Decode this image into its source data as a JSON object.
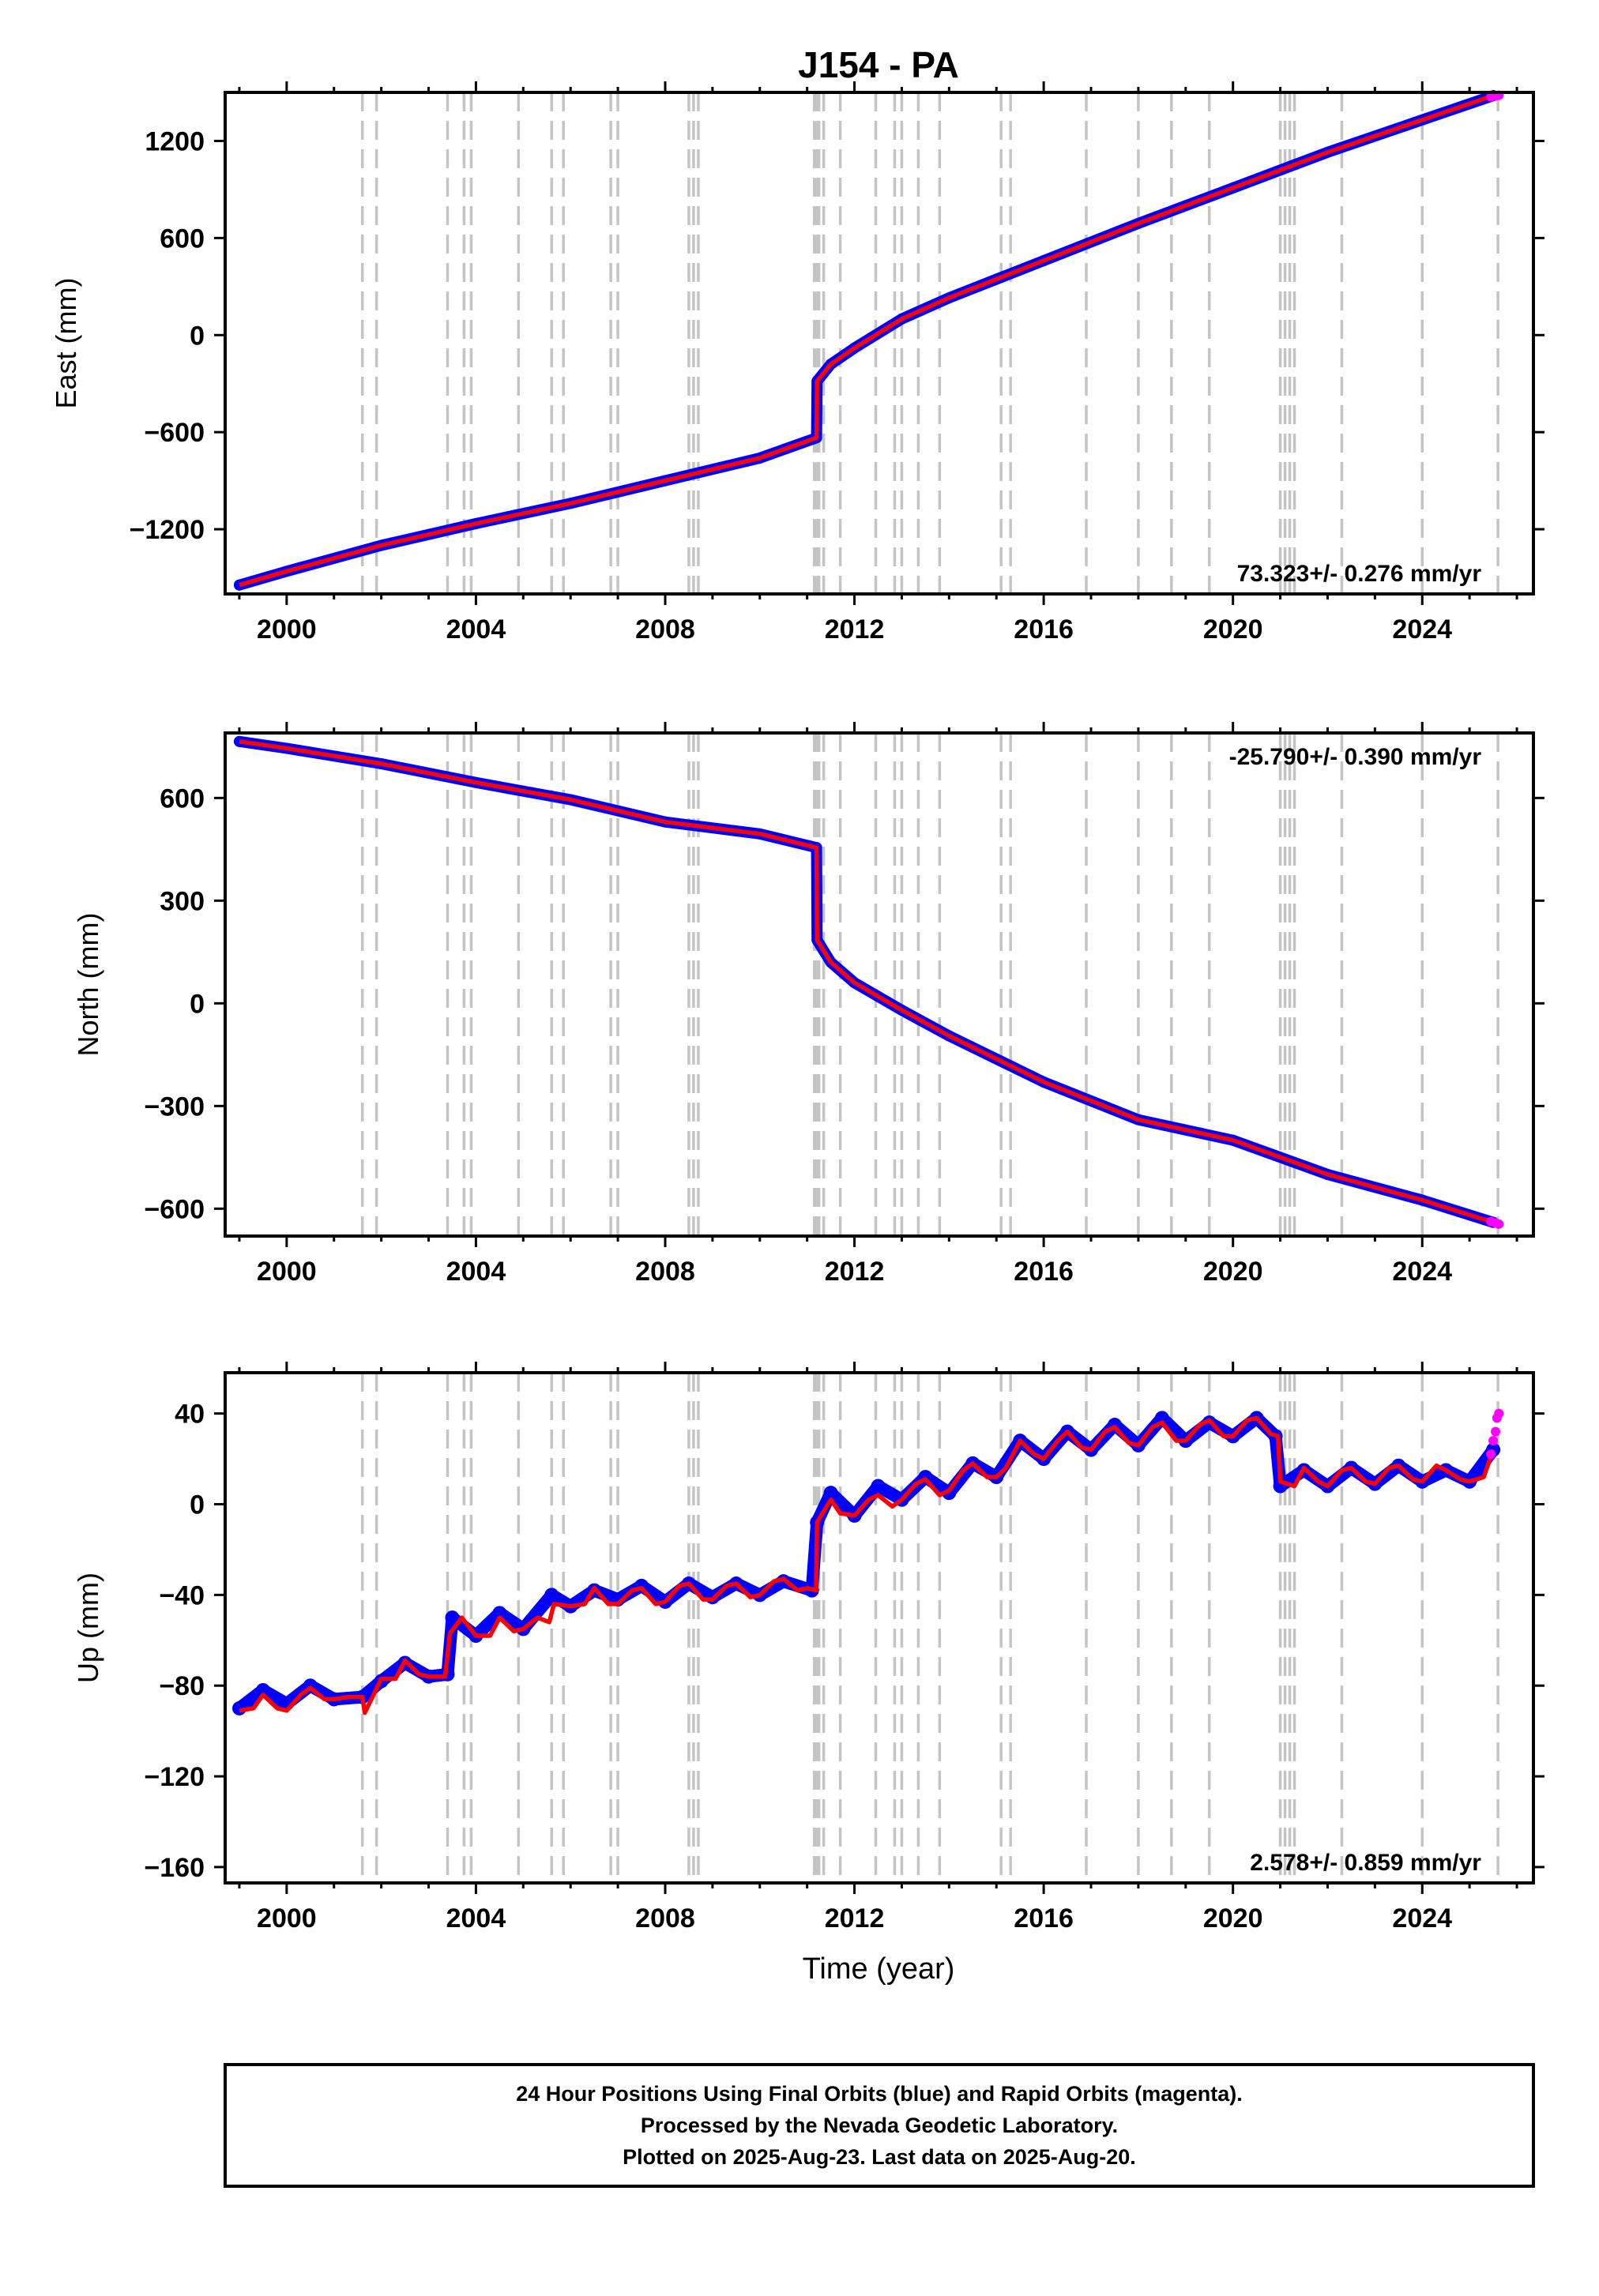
{
  "chart_data": [
    {
      "type": "scatter",
      "title": "J154 - PA",
      "xlabel": "",
      "ylabel": "East (mm)",
      "xlim": [
        1998.7,
        2026.35
      ],
      "ylim": [
        -1600,
        1500
      ],
      "xticks": [
        2000,
        2004,
        2008,
        2012,
        2016,
        2020,
        2024
      ],
      "xtick_labels": [
        "2000",
        "2004",
        "2008",
        "2012",
        "2016",
        "2020",
        "2024"
      ],
      "yticks": [
        1200,
        600,
        0,
        -600,
        -1200
      ],
      "ytick_labels": [
        "1200",
        "600",
        "0",
        "−600",
        "−1200"
      ],
      "rate_label": "73.323+/- 0.276 mm/yr",
      "rate_position": "bottom-right",
      "step_lines": [
        2001.6,
        2001.9,
        2003.4,
        2003.75,
        2003.9,
        2004.9,
        2005.6,
        2005.85,
        2006.85,
        2007.0,
        2008.5,
        2008.6,
        2008.7,
        2011.15,
        2011.2,
        2011.25,
        2011.35,
        2011.7,
        2012.45,
        2012.85,
        2013.0,
        2013.35,
        2013.8,
        2015.1,
        2015.3,
        2016.9,
        2018.0,
        2018.7,
        2019.5,
        2021.0,
        2021.1,
        2021.2,
        2021.3,
        2022.3,
        2024.0,
        2025.6
      ],
      "series": [
        {
          "color": "#0000ff",
          "x": [
            1999.0,
            2000.0,
            2002.0,
            2004.0,
            2006.0,
            2008.0,
            2010.0,
            2011.2,
            2011.21,
            2011.5,
            2012.0,
            2013.0,
            2014.0,
            2016.0,
            2018.0,
            2020.0,
            2022.0,
            2024.0,
            2025.5
          ],
          "y": [
            -1545,
            -1460,
            -1300,
            -1165,
            -1040,
            -900,
            -760,
            -635,
            -285,
            -180,
            -80,
            100,
            230,
            460,
            690,
            910,
            1130,
            1330,
            1480
          ]
        },
        {
          "color": "#ff0000",
          "x": [
            1999.0,
            2000.0,
            2002.0,
            2004.0,
            2006.0,
            2008.0,
            2010.0,
            2011.2,
            2011.21,
            2011.5,
            2012.0,
            2013.0,
            2014.0,
            2016.0,
            2018.0,
            2020.0,
            2022.0,
            2024.0,
            2025.5
          ],
          "y": [
            -1545,
            -1460,
            -1300,
            -1165,
            -1040,
            -900,
            -760,
            -635,
            -285,
            -180,
            -80,
            100,
            230,
            460,
            690,
            910,
            1130,
            1330,
            1480
          ]
        },
        {
          "color": "#ff00ff",
          "x": [
            2025.45,
            2025.55,
            2025.62
          ],
          "y": [
            1472,
            1478,
            1482
          ]
        }
      ]
    },
    {
      "type": "scatter",
      "xlabel": "",
      "ylabel": "North (mm)",
      "xlim": [
        1998.7,
        2026.35
      ],
      "ylim": [
        -680,
        790
      ],
      "xticks": [
        2000,
        2004,
        2008,
        2012,
        2016,
        2020,
        2024
      ],
      "xtick_labels": [
        "2000",
        "2004",
        "2008",
        "2012",
        "2016",
        "2020",
        "2024"
      ],
      "yticks": [
        600,
        300,
        0,
        -300,
        -600
      ],
      "ytick_labels": [
        "600",
        "300",
        "0",
        "−300",
        "−600"
      ],
      "rate_label": "-25.790+/- 0.390 mm/yr",
      "rate_position": "top-right",
      "step_lines": [
        2001.6,
        2001.9,
        2003.4,
        2003.75,
        2003.9,
        2004.9,
        2005.6,
        2005.85,
        2006.85,
        2007.0,
        2008.5,
        2008.6,
        2008.7,
        2011.15,
        2011.2,
        2011.25,
        2011.35,
        2011.7,
        2012.45,
        2012.85,
        2013.0,
        2013.35,
        2013.8,
        2015.1,
        2015.3,
        2016.9,
        2018.0,
        2018.7,
        2019.5,
        2021.0,
        2021.1,
        2021.2,
        2021.3,
        2022.3,
        2024.0,
        2025.6
      ],
      "series": [
        {
          "color": "#0000ff",
          "x": [
            1999.0,
            2000.0,
            2002.0,
            2004.0,
            2006.0,
            2008.0,
            2010.0,
            2011.2,
            2011.21,
            2011.5,
            2012.0,
            2013.0,
            2014.0,
            2016.0,
            2018.0,
            2020.0,
            2022.0,
            2024.0,
            2025.5
          ],
          "y": [
            765,
            745,
            700,
            645,
            595,
            530,
            495,
            455,
            185,
            120,
            60,
            -20,
            -95,
            -230,
            -340,
            -400,
            -500,
            -575,
            -640
          ]
        },
        {
          "color": "#ff0000",
          "x": [
            1999.0,
            2000.0,
            2002.0,
            2004.0,
            2006.0,
            2008.0,
            2010.0,
            2011.2,
            2011.21,
            2011.5,
            2012.0,
            2013.0,
            2014.0,
            2016.0,
            2018.0,
            2020.0,
            2022.0,
            2024.0,
            2025.5
          ],
          "y": [
            765,
            745,
            700,
            645,
            595,
            530,
            495,
            455,
            185,
            120,
            60,
            -20,
            -95,
            -230,
            -340,
            -400,
            -500,
            -575,
            -640
          ]
        },
        {
          "color": "#ff00ff",
          "x": [
            2025.45,
            2025.55,
            2025.62
          ],
          "y": [
            -638,
            -642,
            -645
          ]
        }
      ]
    },
    {
      "type": "scatter",
      "xlabel": "Time (year)",
      "ylabel": "Up (mm)",
      "xlim": [
        1998.7,
        2026.35
      ],
      "ylim": [
        -167,
        58
      ],
      "xticks": [
        2000,
        2004,
        2008,
        2012,
        2016,
        2020,
        2024
      ],
      "xtick_labels": [
        "2000",
        "2004",
        "2008",
        "2012",
        "2016",
        "2020",
        "2024"
      ],
      "yticks": [
        40,
        0,
        -40,
        -80,
        -120,
        -160
      ],
      "ytick_labels": [
        "40",
        "0",
        "−40",
        "−80",
        "−120",
        "−160"
      ],
      "rate_label": "2.578+/- 0.859 mm/yr",
      "rate_position": "bottom-right",
      "step_lines": [
        2001.6,
        2001.9,
        2003.4,
        2003.75,
        2003.9,
        2004.9,
        2005.6,
        2005.85,
        2006.85,
        2007.0,
        2008.5,
        2008.6,
        2008.7,
        2011.15,
        2011.2,
        2011.25,
        2011.35,
        2011.7,
        2012.45,
        2012.85,
        2013.0,
        2013.35,
        2013.8,
        2015.1,
        2015.3,
        2016.9,
        2018.0,
        2018.7,
        2019.5,
        2021.0,
        2021.1,
        2021.2,
        2021.3,
        2022.3,
        2024.0,
        2025.6
      ],
      "series": [
        {
          "color": "#0000ff",
          "x": [
            1999.0,
            1999.5,
            2000.0,
            2000.5,
            2001.0,
            2001.6,
            2002.0,
            2002.5,
            2003.0,
            2003.4,
            2003.5,
            2004.0,
            2004.5,
            2005.0,
            2005.6,
            2006.0,
            2006.5,
            2007.0,
            2007.5,
            2008.0,
            2008.5,
            2009.0,
            2009.5,
            2010.0,
            2010.5,
            2011.1,
            2011.21,
            2011.5,
            2012.0,
            2012.5,
            2013.0,
            2013.5,
            2014.0,
            2014.5,
            2015.0,
            2015.5,
            2016.0,
            2016.5,
            2017.0,
            2017.5,
            2018.0,
            2018.5,
            2019.0,
            2019.5,
            2020.0,
            2020.5,
            2020.9,
            2021.0,
            2021.5,
            2022.0,
            2022.5,
            2023.0,
            2023.5,
            2024.0,
            2024.5,
            2025.0,
            2025.5
          ],
          "y": [
            -90,
            -82,
            -88,
            -80,
            -86,
            -85,
            -78,
            -70,
            -76,
            -75,
            -50,
            -58,
            -48,
            -55,
            -40,
            -45,
            -38,
            -42,
            -36,
            -43,
            -35,
            -41,
            -35,
            -40,
            -34,
            -38,
            -8,
            5,
            -5,
            8,
            2,
            12,
            5,
            18,
            12,
            28,
            20,
            32,
            24,
            35,
            26,
            38,
            28,
            36,
            30,
            38,
            30,
            8,
            15,
            8,
            16,
            9,
            17,
            10,
            15,
            10,
            24
          ]
        },
        {
          "color": "#ff0000",
          "x": [
            1999.0,
            1999.3,
            1999.5,
            1999.8,
            2000.0,
            2000.3,
            2000.5,
            2000.8,
            2001.0,
            2001.3,
            2001.6,
            2001.65,
            2002.0,
            2002.3,
            2002.5,
            2002.8,
            2003.0,
            2003.35,
            2003.45,
            2003.7,
            2004.0,
            2004.3,
            2004.5,
            2004.8,
            2005.0,
            2005.3,
            2005.55,
            2005.65,
            2006.0,
            2006.3,
            2006.5,
            2006.8,
            2007.0,
            2007.3,
            2007.5,
            2007.8,
            2008.0,
            2008.3,
            2008.5,
            2008.8,
            2009.0,
            2009.3,
            2009.5,
            2009.8,
            2010.0,
            2010.3,
            2010.5,
            2010.8,
            2011.0,
            2011.19,
            2011.21,
            2011.5,
            2011.7,
            2012.0,
            2012.3,
            2012.5,
            2012.8,
            2013.0,
            2013.3,
            2013.5,
            2013.8,
            2014.0,
            2014.3,
            2014.5,
            2014.8,
            2015.0,
            2015.2,
            2015.5,
            2015.8,
            2016.0,
            2016.3,
            2016.5,
            2016.8,
            2017.0,
            2017.3,
            2017.5,
            2017.8,
            2018.0,
            2018.3,
            2018.5,
            2018.8,
            2019.0,
            2019.3,
            2019.5,
            2019.8,
            2020.0,
            2020.3,
            2020.5,
            2020.8,
            2020.95,
            2021.0,
            2021.3,
            2021.5,
            2021.8,
            2022.0,
            2022.3,
            2022.5,
            2022.8,
            2023.0,
            2023.3,
            2023.5,
            2023.8,
            2024.0,
            2024.3,
            2024.5,
            2024.8,
            2025.0,
            2025.3,
            2025.5
          ],
          "y": [
            -91,
            -90,
            -84,
            -90,
            -91,
            -84,
            -81,
            -86,
            -86,
            -85,
            -85,
            -92,
            -77,
            -77,
            -69,
            -75,
            -76,
            -76,
            -57,
            -50,
            -58,
            -58,
            -50,
            -56,
            -55,
            -50,
            -52,
            -44,
            -45,
            -44,
            -37,
            -44,
            -44,
            -38,
            -37,
            -44,
            -43,
            -36,
            -35,
            -42,
            -42,
            -36,
            -35,
            -41,
            -40,
            -34,
            -33,
            -38,
            -37,
            -38,
            -8,
            2,
            -4,
            -5,
            2,
            4,
            -1,
            2,
            9,
            11,
            4,
            6,
            15,
            18,
            12,
            12,
            16,
            28,
            22,
            20,
            28,
            32,
            25,
            24,
            32,
            34,
            27,
            26,
            34,
            36,
            28,
            28,
            35,
            37,
            30,
            30,
            37,
            38,
            31,
            30,
            10,
            8,
            16,
            10,
            8,
            15,
            16,
            10,
            9,
            16,
            17,
            11,
            10,
            17,
            15,
            11,
            10,
            12,
            24
          ]
        },
        {
          "color": "#ff00ff",
          "x": [
            2025.45,
            2025.5,
            2025.55,
            2025.58,
            2025.62
          ],
          "y": [
            22,
            28,
            32,
            38,
            40
          ]
        }
      ]
    }
  ],
  "footer": {
    "line1": "24 Hour Positions Using Final Orbits (blue) and Rapid Orbits (magenta).",
    "line2": "Processed by the Nevada Geodetic Laboratory.",
    "line3": "Plotted on 2025-Aug-23. Last data on 2025-Aug-20."
  }
}
